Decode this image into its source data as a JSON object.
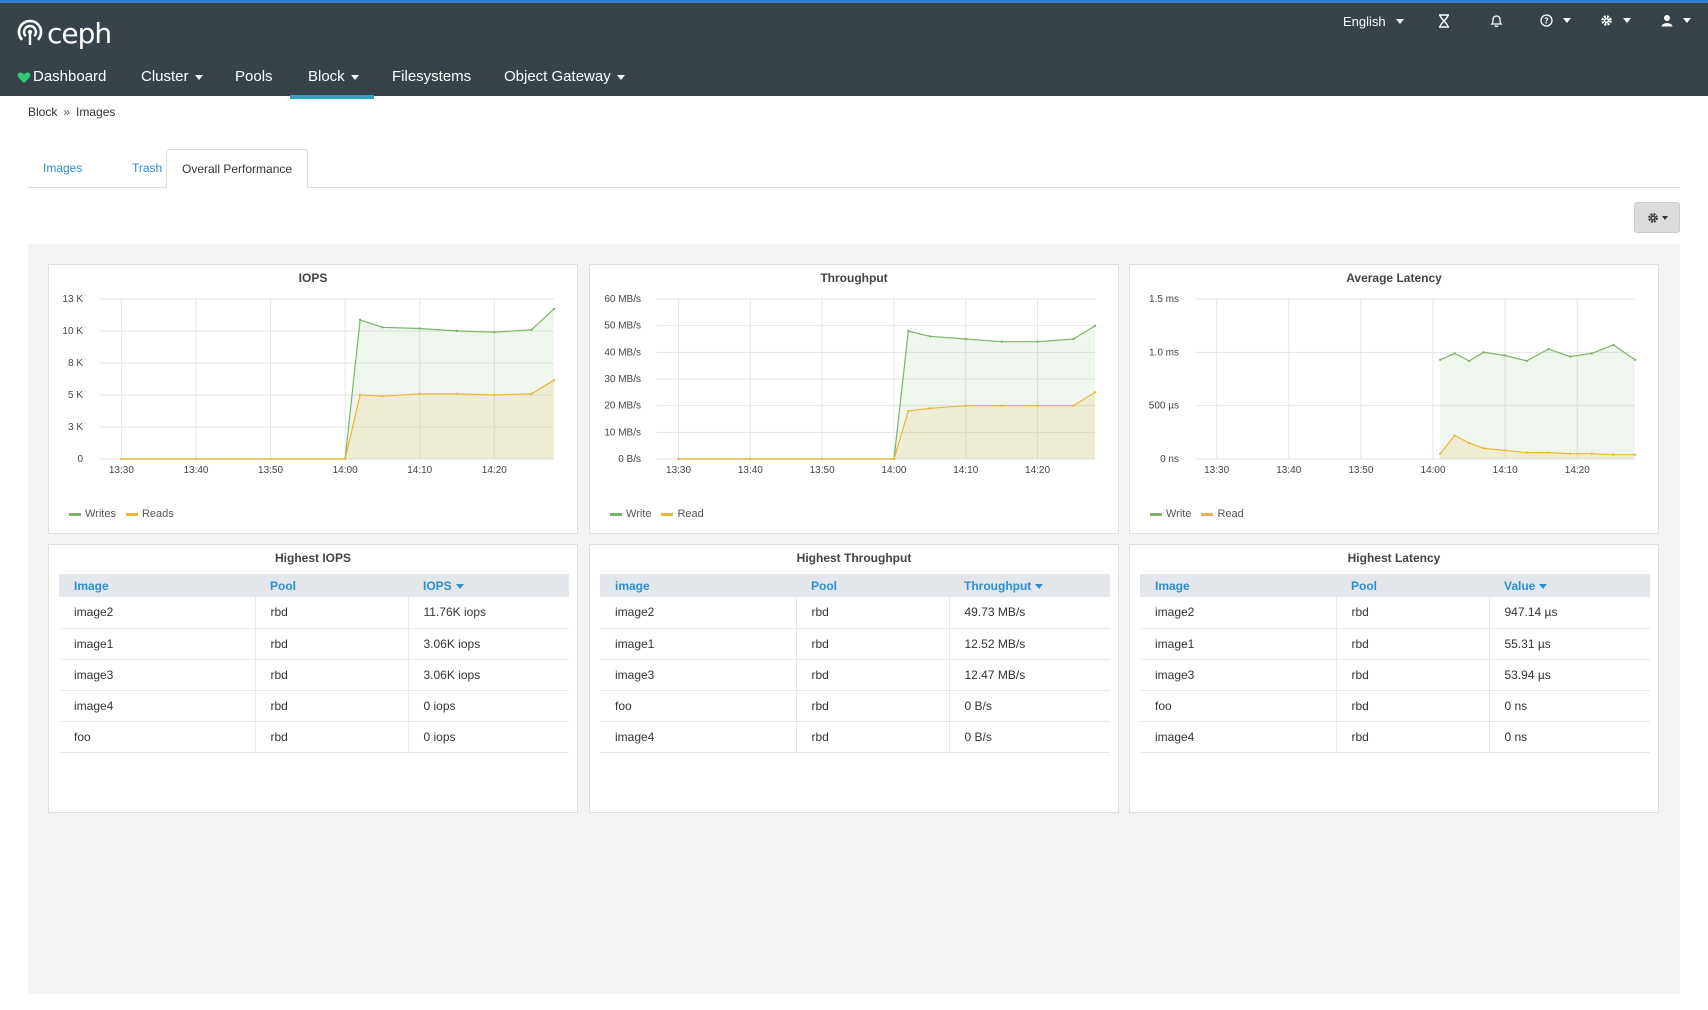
{
  "app": {
    "logo_text": "ceph"
  },
  "header": {
    "language": "English",
    "icons": [
      "hourglass-icon",
      "bell-icon",
      "help-icon",
      "gear-icon",
      "user-icon"
    ]
  },
  "nav": {
    "items": [
      {
        "label": "Dashboard"
      },
      {
        "label": "Cluster"
      },
      {
        "label": "Pools"
      },
      {
        "label": "Block"
      },
      {
        "label": "Filesystems"
      },
      {
        "label": "Object Gateway"
      }
    ]
  },
  "breadcrumb": {
    "parent": "Block",
    "current": "Images"
  },
  "tabs": [
    {
      "label": "Images"
    },
    {
      "label": "Trash"
    },
    {
      "label": "Overall Performance"
    }
  ],
  "colors": {
    "write": "#7eb26d",
    "read": "#eab839",
    "link": "#2b8fcf",
    "header_bg": "#374249",
    "accent": "#2fa5bd"
  },
  "charts": {
    "iops": {
      "title": "IOPS",
      "legend": [
        "Writes",
        "Reads"
      ],
      "y_ticks": [
        "13 K",
        "10 K",
        "8 K",
        "5 K",
        "3 K",
        "0"
      ]
    },
    "throughput": {
      "title": "Throughput",
      "legend": [
        "Write",
        "Read"
      ],
      "y_ticks": [
        "60 MB/s",
        "50 MB/s",
        "40 MB/s",
        "30 MB/s",
        "20 MB/s",
        "10 MB/s",
        "0 B/s"
      ]
    },
    "latency": {
      "title": "Average Latency",
      "legend": [
        "Write",
        "Read"
      ],
      "y_ticks": [
        "1.5 ms",
        "1.0 ms",
        "500 µs",
        "0 ns"
      ]
    },
    "x_ticks": [
      "13:30",
      "13:40",
      "13:50",
      "14:00",
      "14:10",
      "14:20"
    ]
  },
  "chart_data": [
    {
      "type": "area",
      "title": "IOPS",
      "x": [
        "13:30",
        "13:40",
        "13:50",
        "14:00",
        "14:02",
        "14:05",
        "14:10",
        "14:15",
        "14:20",
        "14:25",
        "14:28"
      ],
      "series": [
        {
          "name": "Writes",
          "values": [
            0,
            0,
            0,
            0,
            11300,
            10700,
            10600,
            10400,
            10300,
            10500,
            12200
          ]
        },
        {
          "name": "Reads",
          "values": [
            0,
            0,
            0,
            0,
            5200,
            5100,
            5300,
            5300,
            5200,
            5300,
            6400
          ]
        }
      ],
      "ylim": [
        0,
        13000
      ]
    },
    {
      "type": "area",
      "title": "Throughput",
      "x": [
        "13:30",
        "13:40",
        "13:50",
        "14:00",
        "14:02",
        "14:05",
        "14:10",
        "14:15",
        "14:20",
        "14:25",
        "14:28"
      ],
      "series": [
        {
          "name": "Write",
          "values": [
            0,
            0,
            0,
            0,
            48,
            46,
            45,
            44,
            44,
            45,
            50
          ]
        },
        {
          "name": "Read",
          "values": [
            0,
            0,
            0,
            0,
            18,
            19,
            20,
            20,
            20,
            20,
            25
          ]
        }
      ],
      "ylim": [
        0,
        60
      ]
    },
    {
      "type": "area",
      "title": "Average Latency",
      "x": [
        "14:01",
        "14:03",
        "14:05",
        "14:07",
        "14:10",
        "14:13",
        "14:16",
        "14:19",
        "14:22",
        "14:25",
        "14:28"
      ],
      "series": [
        {
          "name": "Write",
          "values": [
            0.93,
            0.99,
            0.92,
            1.0,
            0.97,
            0.92,
            1.03,
            0.96,
            0.99,
            1.07,
            0.93
          ]
        },
        {
          "name": "Read",
          "values": [
            0.05,
            0.22,
            0.15,
            0.1,
            0.08,
            0.06,
            0.06,
            0.05,
            0.05,
            0.04,
            0.04
          ]
        }
      ],
      "ylim": [
        0,
        1.5
      ]
    }
  ],
  "tables": {
    "iops": {
      "title": "Highest IOPS",
      "headers": [
        "Image",
        "Pool",
        "IOPS"
      ],
      "rows": [
        [
          "image2",
          "rbd",
          "11.76K iops"
        ],
        [
          "image1",
          "rbd",
          "3.06K iops"
        ],
        [
          "image3",
          "rbd",
          "3.06K iops"
        ],
        [
          "image4",
          "rbd",
          "0 iops"
        ],
        [
          "foo",
          "rbd",
          "0 iops"
        ]
      ]
    },
    "throughput": {
      "title": "Highest Throughput",
      "headers": [
        "image",
        "Pool",
        "Throughput"
      ],
      "rows": [
        [
          "image2",
          "rbd",
          "49.73 MB/s"
        ],
        [
          "image1",
          "rbd",
          "12.52 MB/s"
        ],
        [
          "image3",
          "rbd",
          "12.47 MB/s"
        ],
        [
          "foo",
          "rbd",
          "0 B/s"
        ],
        [
          "image4",
          "rbd",
          "0 B/s"
        ]
      ]
    },
    "latency": {
      "title": "Highest Latency",
      "headers": [
        "Image",
        "Pool",
        "Value"
      ],
      "rows": [
        [
          "image2",
          "rbd",
          "947.14 µs"
        ],
        [
          "image1",
          "rbd",
          "55.31 µs"
        ],
        [
          "image3",
          "rbd",
          "53.94 µs"
        ],
        [
          "foo",
          "rbd",
          "0 ns"
        ],
        [
          "image4",
          "rbd",
          "0 ns"
        ]
      ]
    }
  }
}
